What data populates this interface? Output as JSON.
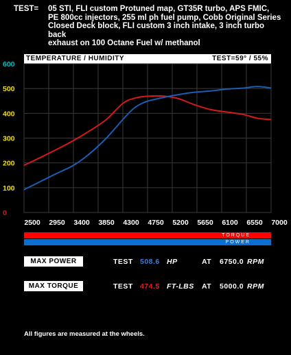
{
  "test": {
    "label": "TEST=",
    "description": "05 STI, FLI custom Protuned map, GT35R turbo, APS FMIC,\nPE 800cc injectors, 255 ml ph fuel pump, Cobb Original Series\nClosed Deck block, FLI custom 3 inch intake,  3 inch turbo back\nexhaust on 100 Octane Fuel w/ methanol"
  },
  "chart_header": {
    "left": "TEMPERATURE / HUMIDITY",
    "right": "TEST=59° / 55%"
  },
  "chart_data": {
    "type": "line",
    "x": [
      2500,
      2800,
      3100,
      3400,
      3700,
      4000,
      4300,
      4500,
      4700,
      5000,
      5300,
      5600,
      5900,
      6200,
      6500,
      6750,
      7000
    ],
    "series": [
      {
        "name": "TORQUE",
        "color": "#d41a1a",
        "values": [
          190,
          222,
          255,
          290,
          330,
          375,
          440,
          460,
          468,
          470,
          460,
          435,
          415,
          405,
          395,
          380,
          375
        ]
      },
      {
        "name": "POWER",
        "color": "#1a5fb4",
        "values": [
          92,
          125,
          158,
          190,
          238,
          300,
          375,
          420,
          445,
          462,
          475,
          485,
          490,
          498,
          502,
          508,
          502
        ]
      }
    ],
    "xticks": [
      "2500",
      "2950",
      "3400",
      "3850",
      "4300",
      "4750",
      "5200",
      "5650",
      "6100",
      "6550",
      "7000"
    ],
    "xlim": [
      2500,
      7000
    ],
    "yticks": [
      "0",
      "100",
      "200",
      "300",
      "400",
      "500",
      "600"
    ],
    "ylim": [
      0,
      600
    ],
    "grid": true,
    "ytick_color": "#f0e000",
    "ytick_top_color": "#00c0c0"
  },
  "legend": {
    "torque": "TORQUE",
    "power": "POWER"
  },
  "max_power": {
    "label": "MAX POWER",
    "test": "TEST",
    "value": "508.6",
    "unit": "HP",
    "at": "AT",
    "rpm_value": "6750.0",
    "rpm_unit": "RPM",
    "value_color": "#3a7fe0"
  },
  "max_torque": {
    "label": "MAX TORQUE",
    "test": "TEST",
    "value": "474.5",
    "unit": "FT-LBS",
    "at": "AT",
    "rpm_value": "5000.0",
    "rpm_unit": "RPM",
    "value_color": "#e02020"
  },
  "footnote": "All figures are measured at the wheels."
}
